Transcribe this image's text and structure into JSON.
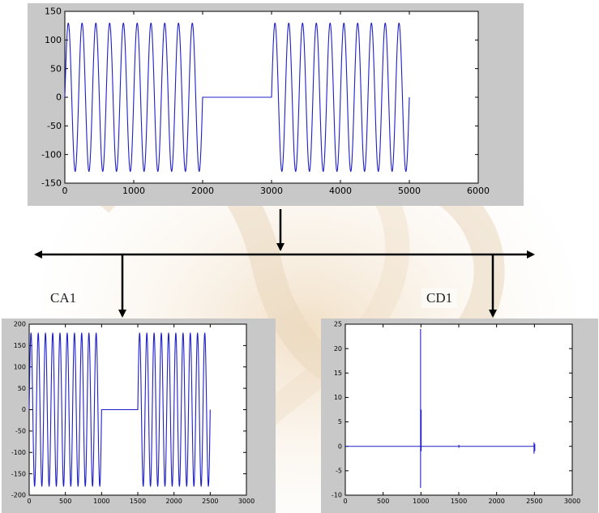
{
  "labels": {
    "ca1": "CA1",
    "cd1": "CD1"
  },
  "colors": {
    "signal": "#1f1fc8",
    "axis_bg": "#c8c8c8",
    "background_wash": "#f3e6cf"
  },
  "chart_data": [
    {
      "id": "main",
      "type": "line",
      "title": "",
      "xlabel": "",
      "ylabel": "",
      "xlim": [
        0,
        6000
      ],
      "ylim": [
        -150,
        150
      ],
      "xticks": [
        "0",
        "1000",
        "2000",
        "3000",
        "4000",
        "5000",
        "6000"
      ],
      "yticks": [
        "150",
        "100",
        "50",
        "0",
        "-50",
        "-100",
        "-150"
      ],
      "series": [
        {
          "segments": [
            {
              "kind": "sine",
              "x_start": 0,
              "x_end": 2000,
              "amplitude": 130,
              "period": 200
            },
            {
              "kind": "flat",
              "x_start": 2000,
              "x_end": 3000,
              "value": 0
            },
            {
              "kind": "sine",
              "x_start": 3000,
              "x_end": 5000,
              "amplitude": 130,
              "period": 200
            }
          ]
        }
      ],
      "grid": false
    },
    {
      "id": "ca1",
      "type": "line",
      "title": "",
      "xlabel": "",
      "ylabel": "",
      "xlim": [
        0,
        3000
      ],
      "ylim": [
        -200,
        200
      ],
      "xticks": [
        "0",
        "500",
        "1000",
        "1500",
        "2000",
        "2500",
        "3000"
      ],
      "yticks": [
        "200",
        "150",
        "100",
        "50",
        "0",
        "-50",
        "-100",
        "-150",
        "-200"
      ],
      "series": [
        {
          "segments": [
            {
              "kind": "sine",
              "x_start": 0,
              "x_end": 1000,
              "amplitude": 180,
              "period": 100
            },
            {
              "kind": "flat",
              "x_start": 1000,
              "x_end": 1500,
              "value": 0
            },
            {
              "kind": "sine",
              "x_start": 1500,
              "x_end": 2500,
              "amplitude": 180,
              "period": 100
            }
          ]
        }
      ],
      "grid": false
    },
    {
      "id": "cd1",
      "type": "line",
      "title": "",
      "xlabel": "",
      "ylabel": "",
      "xlim": [
        0,
        3000
      ],
      "ylim": [
        -10,
        25
      ],
      "xticks": [
        "0",
        "500",
        "1000",
        "1500",
        "2000",
        "2500",
        "3000"
      ],
      "yticks": [
        "25",
        "20",
        "15",
        "10",
        "5",
        "0",
        "-5",
        "-10"
      ],
      "series": [
        {
          "baseline": 0,
          "spikes": [
            {
              "x": 995,
              "max": 24,
              "min": -8.5
            },
            {
              "x": 1003,
              "max": 7.5,
              "min": -1
            },
            {
              "x": 1502,
              "max": 0.3,
              "min": -0.3
            },
            {
              "x": 2495,
              "max": 0.8,
              "min": -1.5
            },
            {
              "x": 2505,
              "max": 0.5,
              "min": -1
            }
          ],
          "x_end": 2510
        }
      ],
      "grid": false
    }
  ]
}
